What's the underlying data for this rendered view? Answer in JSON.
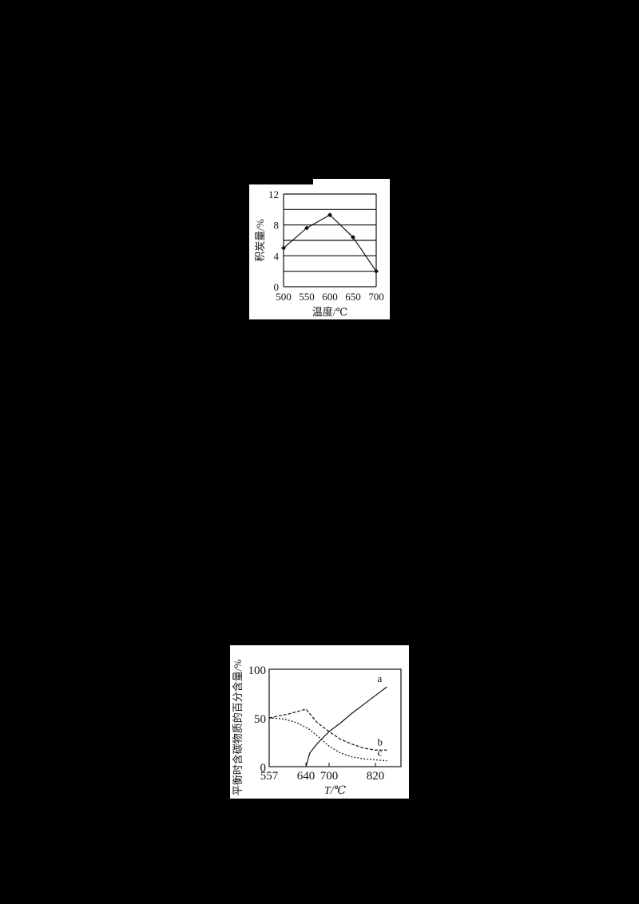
{
  "page": {
    "background": "#000000"
  },
  "chart_data": [
    {
      "type": "line",
      "title": "",
      "xlabel": "温度/℃",
      "ylabel": "积炭量/%",
      "x": [
        500,
        550,
        600,
        650,
        700
      ],
      "xticks": [
        "500",
        "550",
        "600",
        "650",
        "700"
      ],
      "yticks": [
        "0",
        "4",
        "8",
        "12"
      ],
      "ylim": [
        0,
        12
      ],
      "grid_y": [
        2,
        4,
        6,
        8,
        10,
        12
      ],
      "grid": true,
      "series": [
        {
          "name": "积炭量",
          "values": [
            5.0,
            7.6,
            9.3,
            6.4,
            2.0
          ],
          "marker": "diamond",
          "style": "solid"
        }
      ]
    },
    {
      "type": "line",
      "title": "",
      "xlabel": "T/℃",
      "ylabel": "平衡时含碳物质的百分含量/%",
      "xticks": [
        "557",
        "640",
        "700",
        "820"
      ],
      "yticks": [
        "0",
        "50",
        "100"
      ],
      "ylim": [
        0,
        100
      ],
      "grid": false,
      "legend": "inline labels at curve ends",
      "series": [
        {
          "name": "a",
          "style": "solid",
          "points": [
            [
              640,
              0
            ],
            [
              650,
              14
            ],
            [
              670,
              24
            ],
            [
              700,
              36
            ],
            [
              730,
              45
            ],
            [
              760,
              55
            ],
            [
              790,
              64
            ],
            [
              820,
              73
            ],
            [
              850,
              82
            ]
          ]
        },
        {
          "name": "b",
          "style": "dashed",
          "points": [
            [
              557,
              50
            ],
            [
              600,
              54
            ],
            [
              640,
              59
            ],
            [
              670,
              45
            ],
            [
              700,
              36
            ],
            [
              730,
              28
            ],
            [
              760,
              23
            ],
            [
              790,
              19
            ],
            [
              820,
              17
            ],
            [
              850,
              17
            ]
          ]
        },
        {
          "name": "c",
          "style": "dotted",
          "points": [
            [
              557,
              50
            ],
            [
              590,
              49
            ],
            [
              620,
              45
            ],
            [
              650,
              38
            ],
            [
              680,
              28
            ],
            [
              700,
              21
            ],
            [
              730,
              14
            ],
            [
              760,
              10
            ],
            [
              790,
              8
            ],
            [
              820,
              7
            ],
            [
              850,
              6
            ]
          ]
        }
      ]
    }
  ]
}
